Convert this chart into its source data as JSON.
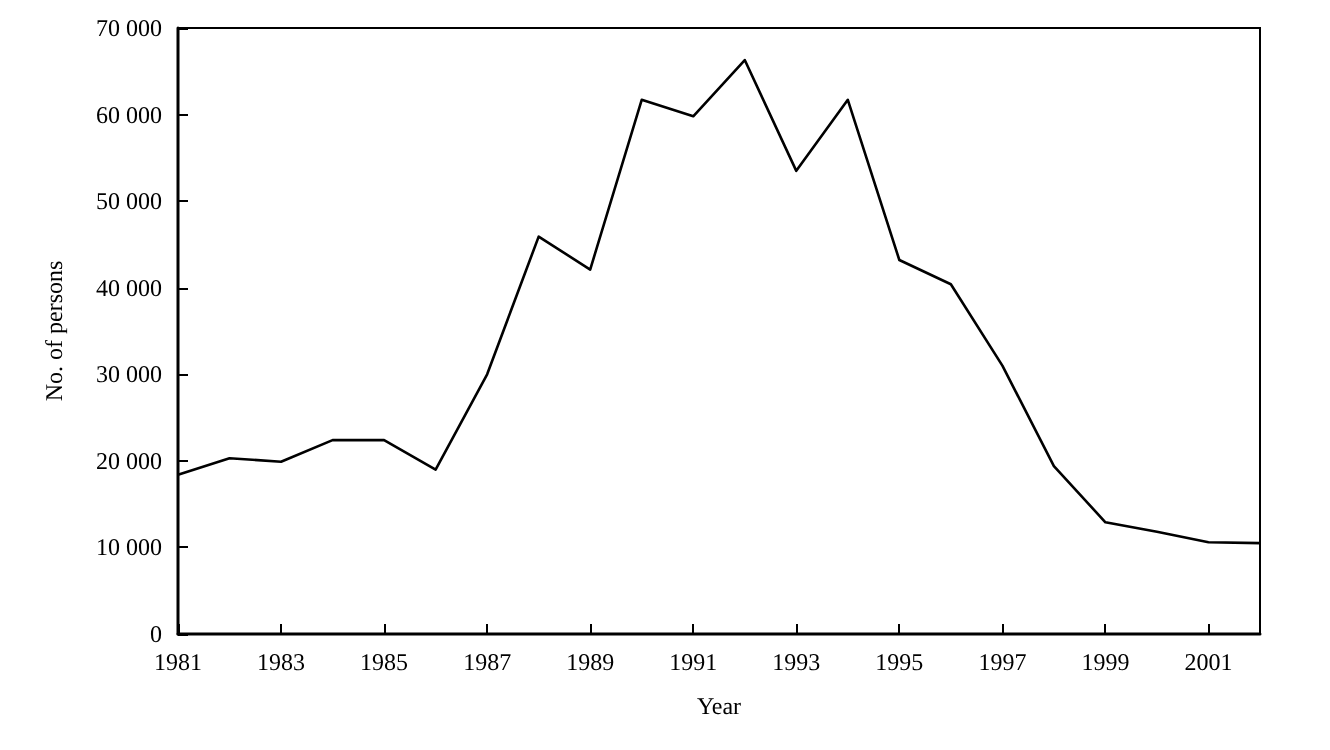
{
  "chart_data": {
    "type": "line",
    "xlabel": "Year",
    "ylabel": "No. of persons",
    "x": [
      1981,
      1982,
      1983,
      1984,
      1985,
      1986,
      1987,
      1988,
      1989,
      1990,
      1991,
      1992,
      1993,
      1994,
      1995,
      1996,
      1997,
      1998,
      1999,
      2000,
      2001,
      2002
    ],
    "series": [
      {
        "color": "#000000",
        "values": [
          18400,
          20300,
          19900,
          22400,
          22400,
          19000,
          30000,
          45900,
          42100,
          61700,
          59800,
          66300,
          53500,
          61700,
          43200,
          40400,
          31000,
          19400,
          12900,
          11800,
          10600,
          10500
        ]
      }
    ],
    "xlim": [
      1981,
      2002
    ],
    "xticks": [
      1981,
      1983,
      1985,
      1987,
      1989,
      1991,
      1993,
      1995,
      1997,
      1999,
      2001
    ],
    "ylim": [
      0,
      70000
    ],
    "yticks": [
      {
        "value": 0,
        "label": "0"
      },
      {
        "value": 10000,
        "label": "10 000"
      },
      {
        "value": 20000,
        "label": "20 000"
      },
      {
        "value": 30000,
        "label": "30 000"
      },
      {
        "value": 40000,
        "label": "40 000"
      },
      {
        "value": 50000,
        "label": "50 000"
      },
      {
        "value": 60000,
        "label": "60 000"
      },
      {
        "value": 70000,
        "label": "70 000"
      }
    ],
    "grid": false,
    "marker": "none",
    "line_style": "solid"
  }
}
